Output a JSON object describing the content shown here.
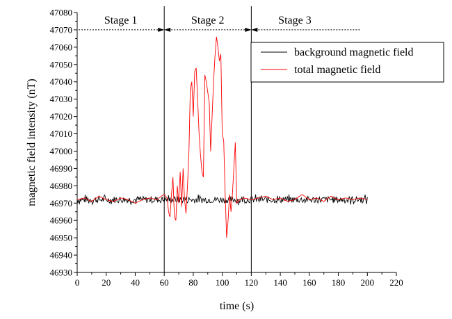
{
  "chart_data": {
    "type": "line",
    "title": "",
    "xlabel": "time (s)",
    "ylabel": "magnetic field intensity (nT)",
    "xlim": [
      0,
      220
    ],
    "ylim": [
      46930,
      47080
    ],
    "x_ticks": [
      0,
      20,
      40,
      60,
      80,
      100,
      120,
      140,
      160,
      180,
      200,
      220
    ],
    "y_ticks": [
      46930,
      46940,
      46950,
      46960,
      46970,
      46980,
      46990,
      47000,
      47010,
      47020,
      47030,
      47040,
      47050,
      47060,
      47070,
      47080
    ],
    "grid": false,
    "legend_position": "top-right",
    "stage_boundaries": [
      60,
      120
    ],
    "stage_arrow_y": 47070,
    "stages": [
      {
        "label": "Stage 1",
        "x_start": 0,
        "x_end": 60
      },
      {
        "label": "Stage 2",
        "x_start": 60,
        "x_end": 120
      },
      {
        "label": "Stage 3",
        "x_start": 120,
        "x_end": 196
      }
    ],
    "series": [
      {
        "name": "background magnetic field",
        "color": "#000000",
        "x_range": [
          0,
          200
        ],
        "base": 46972,
        "noise_amplitude": 2,
        "points": []
      },
      {
        "name": "total magnetic field",
        "color": "#ff0000",
        "points": [
          [
            0,
            46972
          ],
          [
            5,
            46973
          ],
          [
            10,
            46971
          ],
          [
            15,
            46974
          ],
          [
            20,
            46972
          ],
          [
            25,
            46971
          ],
          [
            30,
            46973
          ],
          [
            35,
            46972
          ],
          [
            40,
            46970
          ],
          [
            45,
            46972
          ],
          [
            50,
            46973
          ],
          [
            55,
            46972
          ],
          [
            58,
            46974
          ],
          [
            60,
            46975
          ],
          [
            62,
            46973
          ],
          [
            63,
            46965
          ],
          [
            64,
            46962
          ],
          [
            65,
            46975
          ],
          [
            66,
            46985
          ],
          [
            67,
            46962
          ],
          [
            68,
            46960
          ],
          [
            69,
            46980
          ],
          [
            70,
            46970
          ],
          [
            71,
            46988
          ],
          [
            72,
            46968
          ],
          [
            73,
            46990
          ],
          [
            74,
            46972
          ],
          [
            75,
            46964
          ],
          [
            76,
            46980
          ],
          [
            77,
            46998
          ],
          [
            78,
            47036
          ],
          [
            79,
            47040
          ],
          [
            80,
            47020
          ],
          [
            81,
            47046
          ],
          [
            82,
            47048
          ],
          [
            83,
            47030
          ],
          [
            84,
            47010
          ],
          [
            85,
            46998
          ],
          [
            86,
            46988
          ],
          [
            87,
            46985
          ],
          [
            88,
            47044
          ],
          [
            89,
            47040
          ],
          [
            90,
            47034
          ],
          [
            91,
            47028
          ],
          [
            92,
            47000
          ],
          [
            93,
            47020
          ],
          [
            94,
            47040
          ],
          [
            95,
            47055
          ],
          [
            96,
            47066
          ],
          [
            97,
            47060
          ],
          [
            98,
            47052
          ],
          [
            99,
            47056
          ],
          [
            100,
            47010
          ],
          [
            101,
            47006
          ],
          [
            102,
            46975
          ],
          [
            103,
            46950
          ],
          [
            104,
            46960
          ],
          [
            105,
            46975
          ],
          [
            106,
            46965
          ],
          [
            107,
            46975
          ],
          [
            108,
            46990
          ],
          [
            109,
            47005
          ],
          [
            110,
            46970
          ],
          [
            112,
            46972
          ],
          [
            115,
            46973
          ],
          [
            120,
            46972
          ],
          [
            125,
            46973
          ],
          [
            130,
            46974
          ],
          [
            135,
            46972
          ],
          [
            140,
            46973
          ],
          [
            145,
            46971
          ],
          [
            150,
            46972
          ],
          [
            155,
            46975
          ],
          [
            160,
            46972
          ],
          [
            165,
            46973
          ],
          [
            170,
            46971
          ],
          [
            175,
            46974
          ],
          [
            180,
            46972
          ],
          [
            185,
            46973
          ],
          [
            190,
            46972
          ],
          [
            195,
            46973
          ],
          [
            200,
            46972
          ]
        ]
      }
    ]
  }
}
